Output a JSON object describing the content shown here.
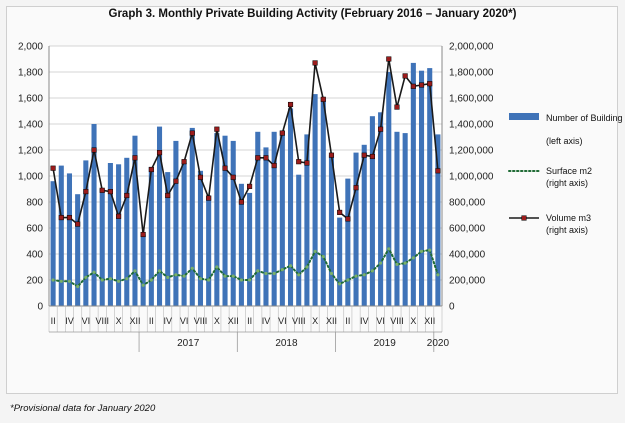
{
  "chart_data": {
    "type": "bar+line",
    "title": "Graph 3. Monthly Private Building Activity (February 2016 – January 2020*)",
    "note": "*Provisional data for January 2020",
    "months": [
      "II",
      "III",
      "IV",
      "V",
      "VI",
      "VII",
      "VIII",
      "IX",
      "X",
      "XI",
      "XII",
      "I",
      "II",
      "III",
      "IV",
      "V",
      "VI",
      "VII",
      "VIII",
      "IX",
      "X",
      "XI",
      "XII",
      "I",
      "II",
      "III",
      "IV",
      "V",
      "VI",
      "VII",
      "VIII",
      "IX",
      "X",
      "XI",
      "XII",
      "I",
      "II",
      "III",
      "IV",
      "V",
      "VI",
      "VII",
      "VIII",
      "IX",
      "X",
      "XI",
      "XII",
      "I"
    ],
    "x_tick_labels": [
      "II",
      "IV",
      "VI",
      "VIII",
      "X",
      "XII",
      "II",
      "IV",
      "VI",
      "VIII",
      "X",
      "XII",
      "II",
      "IV",
      "VI",
      "VIII",
      "X",
      "XII",
      "II",
      "IV",
      "VI",
      "VIII",
      "X",
      "XII"
    ],
    "year_labels": [
      "2017",
      "2018",
      "2019",
      "2020"
    ],
    "left_axis": {
      "min": 0,
      "max": 2000,
      "ticks": [
        "0",
        "200",
        "400",
        "600",
        "800",
        "1,000",
        "1,200",
        "1,400",
        "1,600",
        "1,800",
        "2,000"
      ]
    },
    "right_axis": {
      "min": 0,
      "max": 2000000,
      "ticks": [
        "0",
        "200,000",
        "400,000",
        "600,000",
        "800,000",
        "1,000,000",
        "1,200,000",
        "1,400,000",
        "1,600,000",
        "1,800,000",
        "2,000,000"
      ]
    },
    "series": [
      {
        "name": "Number of Building Permits (left axis)",
        "type": "bar",
        "axis": "left",
        "color": "#3f73b8",
        "values": [
          960,
          1080,
          1020,
          860,
          1120,
          1400,
          900,
          1100,
          1090,
          1140,
          1310,
          550,
          1070,
          1380,
          1030,
          1270,
          1100,
          1370,
          1040,
          850,
          1330,
          1310,
          1270,
          940,
          870,
          1340,
          1220,
          1340,
          1350,
          1520,
          1010,
          1320,
          1630,
          1600,
          1160,
          680,
          980,
          1180,
          1240,
          1460,
          1490,
          1800,
          1340,
          1330,
          1870,
          1810,
          1830,
          1320
        ]
      },
      {
        "name": "Surface m2 (right axis)",
        "type": "line",
        "axis": "right",
        "color": "#1f6b35",
        "values": [
          200000,
          190000,
          190000,
          150000,
          220000,
          260000,
          200000,
          210000,
          190000,
          210000,
          270000,
          160000,
          200000,
          270000,
          220000,
          240000,
          230000,
          290000,
          210000,
          200000,
          300000,
          230000,
          230000,
          200000,
          200000,
          270000,
          250000,
          250000,
          280000,
          310000,
          240000,
          300000,
          420000,
          380000,
          250000,
          170000,
          200000,
          230000,
          240000,
          270000,
          330000,
          440000,
          320000,
          330000,
          370000,
          420000,
          430000,
          240000
        ]
      },
      {
        "name": "Volume m3 (right axis)",
        "type": "line",
        "axis": "right",
        "color": "#1a1a1a",
        "marker_color": "#9b1c1c",
        "values": [
          1060000,
          680000,
          680000,
          630000,
          880000,
          1200000,
          890000,
          880000,
          690000,
          850000,
          1140000,
          550000,
          1050000,
          1180000,
          850000,
          960000,
          1110000,
          1330000,
          990000,
          830000,
          1360000,
          1060000,
          990000,
          800000,
          920000,
          1140000,
          1140000,
          1080000,
          1330000,
          1550000,
          1110000,
          1100000,
          1870000,
          1590000,
          1160000,
          720000,
          670000,
          910000,
          1160000,
          1150000,
          1360000,
          1900000,
          1530000,
          1770000,
          1690000,
          1700000,
          1710000,
          1040000
        ]
      }
    ],
    "legend": [
      "Number of Building Permits",
      "(left axis)",
      "Surface m2",
      "(right axis)",
      "Volume m3",
      "(right axis)"
    ]
  }
}
